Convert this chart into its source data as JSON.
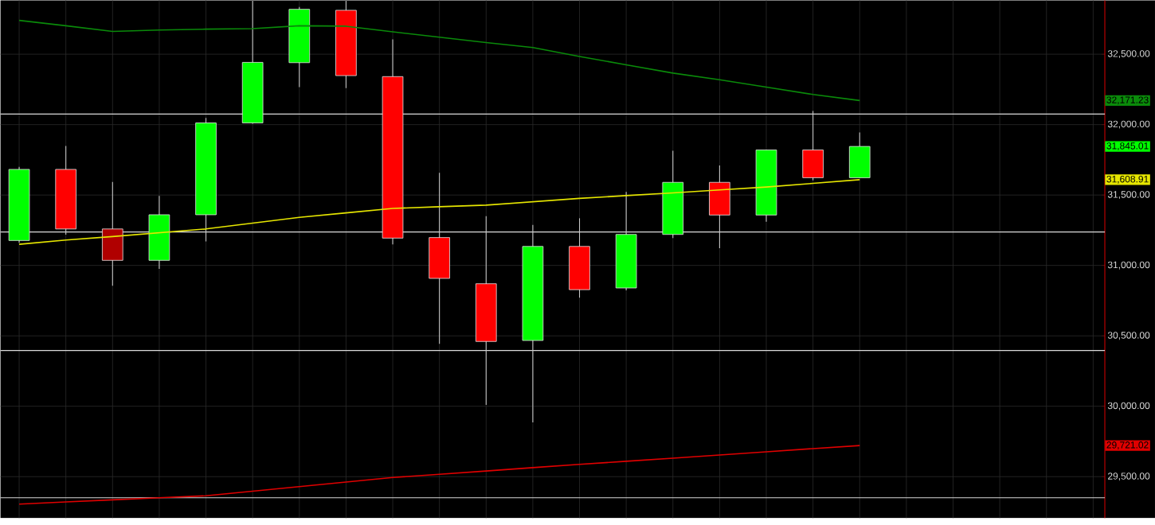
{
  "chart_data": {
    "type": "candlestick",
    "categories": [
      null,
      null,
      null,
      null,
      null,
      null,
      null,
      null,
      null,
      null,
      null,
      null,
      null,
      null,
      null,
      null,
      null,
      null,
      null
    ],
    "ohlc": [
      [
        31177,
        31700,
        31160,
        31682
      ],
      [
        31682,
        31849,
        31219,
        31259
      ],
      [
        31259,
        31593,
        30855,
        31036
      ],
      [
        31036,
        31494,
        30976,
        31360
      ],
      [
        31360,
        32047,
        31171,
        32012
      ],
      [
        32012,
        32880,
        32006,
        32442
      ],
      [
        32440,
        32835,
        32267,
        32819
      ],
      [
        32812,
        32880,
        32259,
        32348
      ],
      [
        32341,
        32605,
        31149,
        31194
      ],
      [
        31198,
        31658,
        30443,
        30908
      ],
      [
        30870,
        31350,
        30010,
        30460
      ],
      [
        30467,
        31288,
        29885,
        31135
      ],
      [
        31135,
        31335,
        30771,
        30828
      ],
      [
        30840,
        31522,
        30823,
        31220
      ],
      [
        31220,
        31815,
        31194,
        31590
      ],
      [
        31590,
        31710,
        31123,
        31358
      ],
      [
        31358,
        31820,
        31311,
        31820
      ],
      [
        31820,
        32097,
        31604,
        31623
      ],
      [
        31623,
        31945,
        31623,
        31845
      ]
    ],
    "colors": [
      "#00ff00",
      "#ff0000",
      "#b00000",
      "#00ff00",
      "#00ff00",
      "#00ff00",
      "#00ff00",
      "#ff0000",
      "#ff0000",
      "#ff0000",
      "#ff0000",
      "#00ff00",
      "#ff0000",
      "#00ff00",
      "#00ff00",
      "#ff0000",
      "#00ff00",
      "#ff0000",
      "#00ff00"
    ],
    "series": [
      {
        "type": "line",
        "color": "#0a8a0a",
        "values": [
          32740,
          32702,
          32662,
          32672,
          32678,
          32682,
          32702,
          32699,
          32659,
          32621,
          32583,
          32547,
          32484,
          32425,
          32366,
          32319,
          32266,
          32214,
          32171.23
        ]
      },
      {
        "type": "line",
        "color": "#e6e600",
        "values": [
          31150,
          31180,
          31205,
          31232,
          31259,
          31300,
          31341,
          31373,
          31405,
          31417,
          31428,
          31452,
          31476,
          31496,
          31515,
          31536,
          31557,
          31583,
          31608.91
        ]
      },
      {
        "type": "line",
        "color": "#e00000",
        "values": [
          29305,
          29320,
          29335,
          29350,
          29364,
          29397,
          29429,
          29462,
          29494,
          29517,
          29540,
          29564,
          29587,
          29609,
          29631,
          29654,
          29676,
          29699,
          29721.02
        ]
      }
    ],
    "ref_lines": [
      {
        "axis": "y",
        "value": 32075,
        "color": "#d9d9d9"
      },
      {
        "axis": "y",
        "value": 31238,
        "color": "#d9d9d9"
      },
      {
        "axis": "y",
        "value": 30396,
        "color": "#d9d9d9"
      },
      {
        "axis": "y",
        "value": 29350,
        "color": "#d9d9d9"
      }
    ],
    "annotations": [
      "32,171.23",
      "31,845.01",
      "31,608.91",
      "29,721.02"
    ],
    "ylim": [
      29206,
      32882
    ],
    "yticks": [
      {
        "value": 29500,
        "label": "29,500.00"
      },
      {
        "value": 30000,
        "label": "30,000.00"
      },
      {
        "value": 30500,
        "label": "30,500.00"
      },
      {
        "value": 31000,
        "label": "31,000.00"
      },
      {
        "value": 31500,
        "label": "31,500.00"
      },
      {
        "value": 32000,
        "label": "32,000.00"
      },
      {
        "value": 32500,
        "label": "32,500.00"
      }
    ],
    "tick_labels": "y",
    "grid": true,
    "marker": "none",
    "line_style": "solid"
  }
}
